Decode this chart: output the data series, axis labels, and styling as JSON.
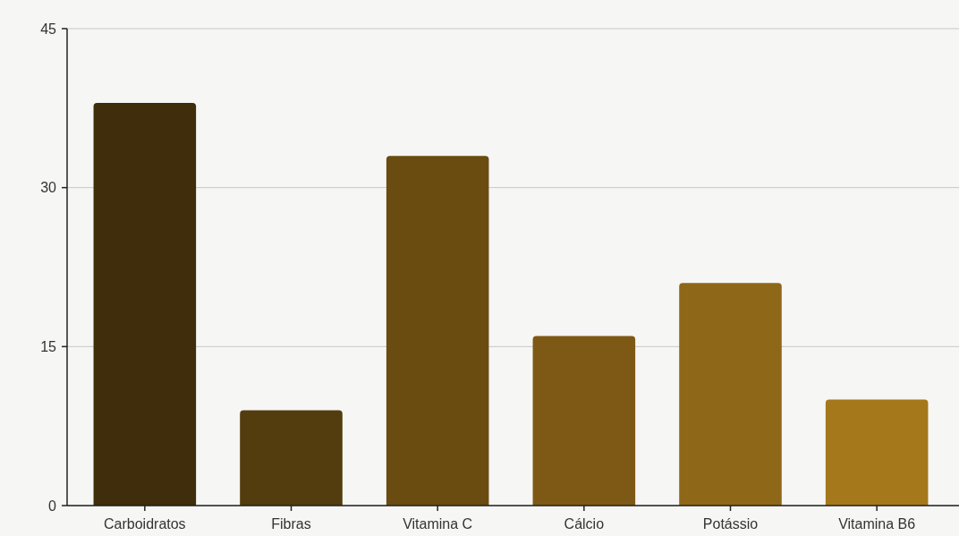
{
  "chart_data": {
    "type": "bar",
    "categories": [
      "Carboidratos",
      "Fibras",
      "Vitamina C",
      "Cálcio",
      "Potássio",
      "Vitamina B6"
    ],
    "values": [
      38,
      9,
      33,
      16,
      21,
      10
    ],
    "colors": [
      "#3f2d0b",
      "#533c0e",
      "#6a4c11",
      "#7d5915",
      "#8f6718",
      "#a4781b"
    ],
    "ylim": [
      0,
      45
    ],
    "yticks": [
      0,
      15,
      30,
      45
    ],
    "grid": "y"
  }
}
